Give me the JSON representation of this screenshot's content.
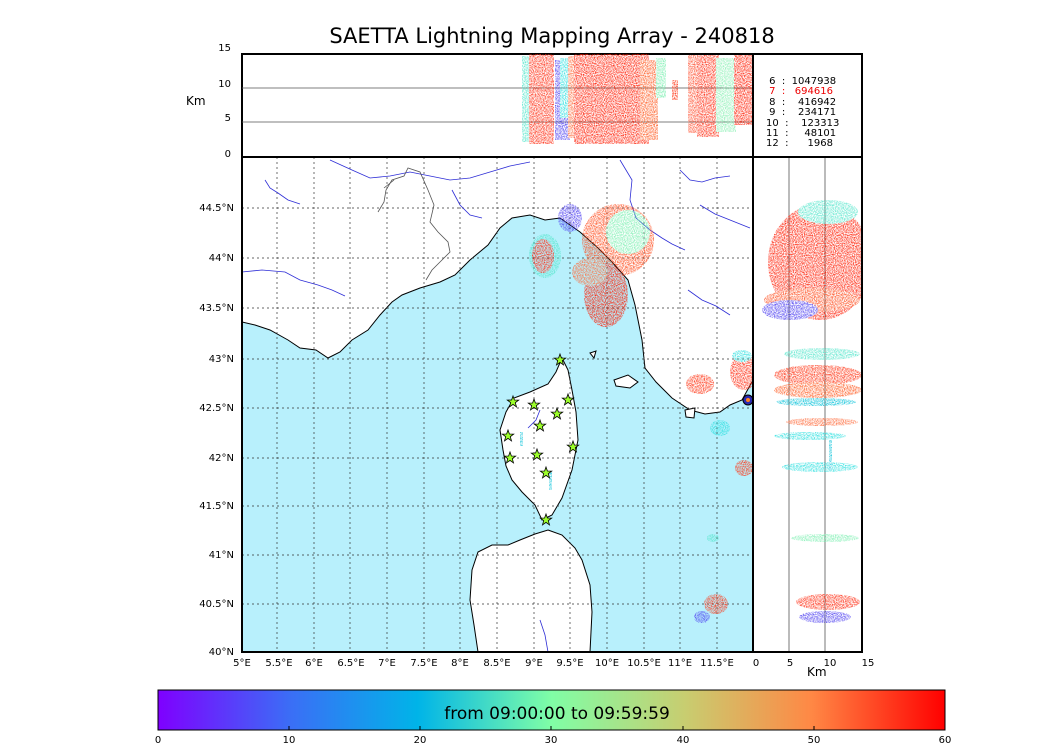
{
  "title": "SAETTA Lightning Mapping Array - 240818",
  "altitude_panel": {
    "ylabel": "Km",
    "yticks": [
      "15",
      "10",
      "5",
      "0"
    ]
  },
  "side_panel": {
    "xlabel": "Km",
    "xticks": [
      "0",
      "5",
      "10",
      "15"
    ]
  },
  "map": {
    "lat_labels": [
      "44.5°N",
      "44°N",
      "43.5°N",
      "43°N",
      "42.5°N",
      "42°N",
      "41.5°N",
      "41°N",
      "40.5°N",
      "40°N"
    ],
    "lon_labels": [
      "5°E",
      "5.5°E",
      "6°E",
      "6.5°E",
      "7°E",
      "7.5°E",
      "8°E",
      "8.5°E",
      "9°E",
      "9.5°E",
      "10°E",
      "10.5°E",
      "11°E",
      "11.5°E"
    ],
    "sea_color": "#b8f0fc",
    "land_color": "#ffffff",
    "river_color": "#2d2dd6",
    "border_color": "#555555",
    "station_color": "#9dff2a"
  },
  "station_counts": [
    {
      "label": " 6  :  1047938",
      "color": "#000000"
    },
    {
      "label": " 7  :   694616",
      "color": "#ee0000"
    },
    {
      "label": " 8  :    416942",
      "color": "#000000"
    },
    {
      "label": " 9  :    234171",
      "color": "#000000"
    },
    {
      "label": "10  :    123313",
      "color": "#000000"
    },
    {
      "label": "11  :     48101",
      "color": "#000000"
    },
    {
      "label": "12  :      1968",
      "color": "#000000"
    }
  ],
  "colorbar": {
    "caption": "from 09:00:00 to 09:59:59",
    "ticks": [
      "0",
      "10",
      "20",
      "30",
      "40",
      "50",
      "60"
    ],
    "colormap": "rainbow"
  }
}
